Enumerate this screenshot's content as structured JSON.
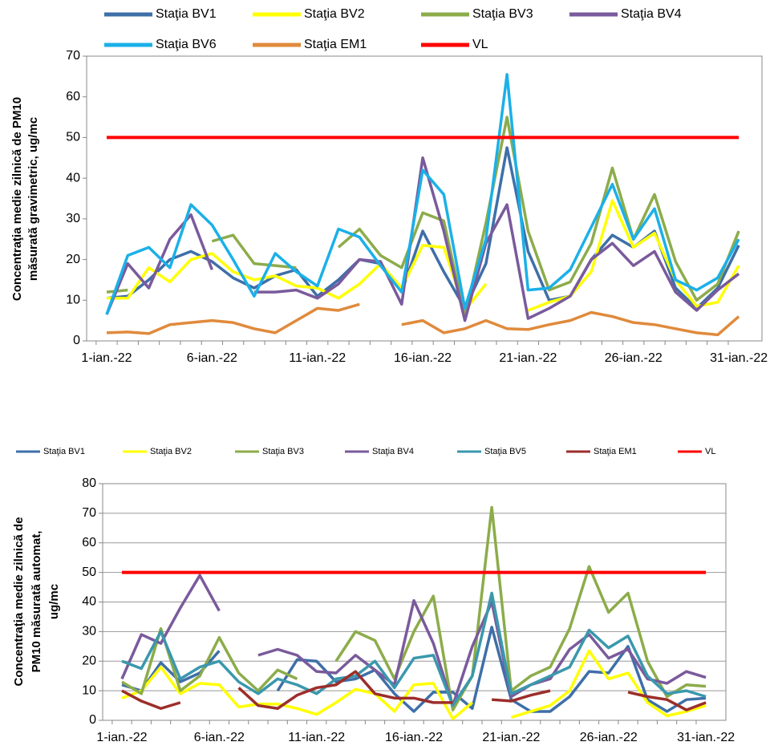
{
  "chart_data": [
    {
      "type": "line",
      "ylabel": [
        "Concentraţia medie zilnică de PM10",
        "măsurată gravimetric, ug/mc"
      ],
      "categories": [
        "1-ian.-22",
        null,
        null,
        null,
        null,
        "6-ian.-22",
        null,
        null,
        null,
        null,
        "11-ian.-22",
        null,
        null,
        null,
        null,
        "16-ian.-22",
        null,
        null,
        null,
        null,
        "21-ian.-22",
        null,
        null,
        null,
        null,
        "26-ian.-22",
        null,
        null,
        null,
        null,
        "31-ian.-22"
      ],
      "ylim": [
        0,
        70
      ],
      "yticks": [
        0,
        10,
        20,
        30,
        40,
        50,
        60,
        70
      ],
      "grid": false,
      "series": [
        {
          "name": "Staţia BV1",
          "color": "#3e6fa8",
          "values": [
            10.5,
            11,
            15,
            20,
            22,
            19.5,
            15.5,
            13,
            16,
            17.5,
            11,
            15,
            20,
            19,
            12,
            27,
            17,
            8,
            19,
            47.5,
            22,
            10,
            11,
            20,
            26,
            23,
            27,
            13,
            8,
            13,
            23.5
          ]
        },
        {
          "name": "Staţia BV2",
          "color": "#ffff00",
          "values": [
            10.5,
            10.5,
            18,
            14.5,
            20,
            21.5,
            17,
            15,
            16,
            13.5,
            13,
            10.5,
            14,
            19,
            13,
            23.5,
            23,
            7.5,
            14,
            null,
            7.5,
            9.5,
            11,
            17,
            34.5,
            23,
            26.5,
            15,
            8.5,
            9.5,
            18.5
          ]
        },
        {
          "name": "Staţia BV3",
          "color": "#8cac4a",
          "values": [
            12,
            12.5,
            null,
            null,
            null,
            24.5,
            26,
            19,
            18.5,
            18,
            null,
            23,
            27.5,
            21,
            18,
            31.5,
            29.5,
            6,
            29,
            55,
            27,
            12.5,
            14.5,
            24,
            42.5,
            25,
            36,
            19.5,
            10,
            14,
            27
          ]
        },
        {
          "name": "Staţia BV4",
          "color": "#7a5a9c",
          "values": [
            6.5,
            19,
            13,
            25,
            31,
            17.5,
            null,
            12,
            12,
            12.5,
            10.5,
            14,
            20,
            19.5,
            9,
            45,
            27,
            5,
            24,
            33.5,
            5.5,
            8,
            11,
            20,
            24,
            18.5,
            22,
            12,
            7.5,
            12.5,
            16.5
          ]
        },
        {
          "name": "Staţia BV6",
          "color": "#1bb0e8",
          "values": [
            6.5,
            21,
            23,
            18,
            33.5,
            28.5,
            20,
            11,
            21.5,
            17,
            13.5,
            27.5,
            25.5,
            18.5,
            12,
            42,
            36,
            8,
            25,
            65.5,
            12.5,
            13,
            17.5,
            28,
            38.5,
            25,
            32.5,
            15,
            12.5,
            15.5,
            25
          ]
        },
        {
          "name": "Staţia EM1",
          "color": "#e08a3c",
          "values": [
            2,
            2.2,
            1.8,
            4,
            4.5,
            5,
            4.5,
            3,
            2,
            5,
            8,
            7.5,
            9,
            null,
            4,
            5,
            2,
            3,
            5,
            3,
            2.8,
            4,
            5,
            7,
            6,
            4.5,
            4,
            3,
            2,
            1.5,
            6
          ]
        },
        {
          "name": "VL",
          "color": "#ff0000",
          "values": [
            50,
            50,
            50,
            50,
            50,
            50,
            50,
            50,
            50,
            50,
            50,
            50,
            50,
            50,
            50,
            50,
            50,
            50,
            50,
            50,
            50,
            50,
            50,
            50,
            50,
            50,
            50,
            50,
            50,
            50,
            50
          ]
        }
      ]
    },
    {
      "type": "line",
      "ylabel": [
        "Concentraţia medie zilnică de",
        "PM10 măsurată automat,",
        "ug/mc"
      ],
      "categories": [
        "1-ian.-22",
        null,
        null,
        null,
        null,
        "6-ian.-22",
        null,
        null,
        null,
        null,
        "11-ian.-22",
        null,
        null,
        null,
        null,
        "16-ian.-22",
        null,
        null,
        null,
        null,
        "21-ian.-22",
        null,
        null,
        null,
        null,
        "26-ian.-22",
        null,
        null,
        null,
        null,
        "31-ian.-22"
      ],
      "ylim": [
        0,
        80
      ],
      "yticks": [
        0,
        10,
        20,
        30,
        40,
        50,
        60,
        70,
        80
      ],
      "grid": true,
      "series": [
        {
          "name": "Staţia BV1",
          "color": "#3e6fa8",
          "values": [
            12,
            10,
            19.5,
            13,
            16,
            23.5,
            null,
            null,
            10,
            20.5,
            20,
            13,
            14,
            17,
            9,
            3,
            9.5,
            9.5,
            4,
            31.5,
            7,
            3,
            3,
            8,
            16.5,
            16,
            25,
            7,
            3,
            7,
            7.5
          ]
        },
        {
          "name": "Staţia BV2",
          "color": "#ffff00",
          "values": [
            7.5,
            10,
            18,
            9,
            12.5,
            12,
            4.5,
            5.5,
            5.5,
            4,
            2,
            6,
            10.5,
            9,
            3,
            12,
            12.5,
            0.5,
            6,
            null,
            1,
            3,
            5,
            10,
            23.5,
            14,
            16,
            6,
            1.5,
            3,
            5
          ]
        },
        {
          "name": "Staţia BV3",
          "color": "#8cac4a",
          "values": [
            13,
            9,
            31,
            10,
            15,
            28,
            16,
            10,
            17,
            14,
            null,
            20,
            30,
            27,
            14,
            30,
            42,
            3.5,
            15,
            72,
            10,
            15,
            18,
            31,
            52,
            36.5,
            43,
            20,
            8,
            12,
            11.5
          ]
        },
        {
          "name": "Staţia BV4",
          "color": "#7a5a9c",
          "values": [
            14,
            29,
            26,
            38,
            49,
            37,
            null,
            22,
            24,
            22,
            16.5,
            16,
            22,
            17,
            12,
            40.5,
            26,
            5,
            25,
            40,
            8,
            12,
            14,
            24,
            29,
            21,
            24,
            14,
            12.5,
            16.5,
            14.5
          ]
        },
        {
          "name": "Staţia BV5",
          "color": "#3a98ad",
          "values": [
            20,
            17.5,
            30,
            14,
            18,
            20,
            13,
            9,
            14,
            12,
            9,
            14,
            15,
            20,
            11,
            21,
            22,
            5,
            15,
            43,
            9,
            12,
            15,
            18,
            30.5,
            24.5,
            28.5,
            15,
            9,
            10,
            8
          ]
        },
        {
          "name": "Staţia EM1",
          "color": "#9c2e2b",
          "values": [
            10,
            6.5,
            4,
            6,
            null,
            null,
            11,
            5,
            4,
            8.5,
            11,
            12,
            16.5,
            9,
            7.5,
            7.5,
            6,
            6,
            null,
            7,
            6.5,
            8.5,
            10,
            null,
            null,
            null,
            9.5,
            8,
            7,
            3.5,
            6
          ]
        },
        {
          "name": "VL",
          "color": "#ff0000",
          "values": [
            50,
            50,
            50,
            50,
            50,
            50,
            50,
            50,
            50,
            50,
            50,
            50,
            50,
            50,
            50,
            50,
            50,
            50,
            50,
            50,
            50,
            50,
            50,
            50,
            50,
            50,
            50,
            50,
            50,
            50,
            50
          ]
        }
      ]
    }
  ]
}
